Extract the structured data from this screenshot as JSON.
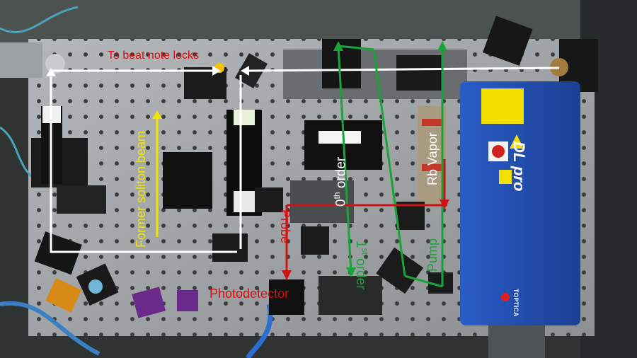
{
  "image": {
    "subject": "optical table setup",
    "colors": {
      "red_beam": "#cc1414",
      "green_beam": "#1aa33a",
      "yellow_beam": "#f2e400",
      "white_beam": "#ffffff",
      "laser_blue": "#2352b8"
    }
  },
  "annotations": {
    "beat_note": "To beat note locks",
    "soliton": "Former soliton beam",
    "rb_vapor": "Rb Vapor",
    "zeroth_order_num": "0",
    "zeroth_order_sup": "th",
    "zeroth_order_word": " order",
    "first_order_num": "1",
    "first_order_sup": "st",
    "first_order_word": " order",
    "probe": "Probe",
    "pump": "Pump",
    "photodetector": "Photodetector"
  },
  "laser": {
    "brand": "DL pro",
    "maker": "TOPTICA"
  }
}
